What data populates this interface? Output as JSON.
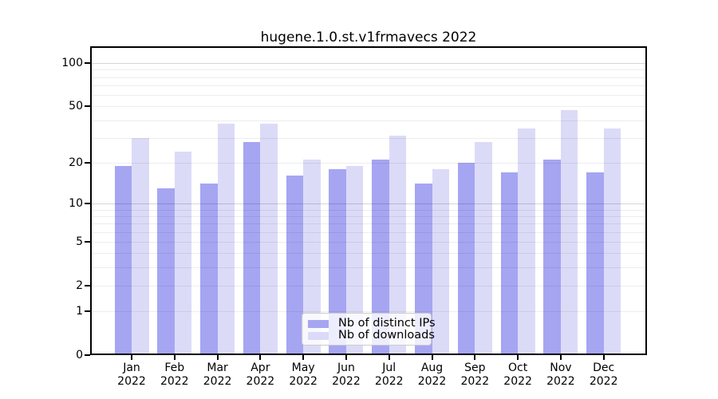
{
  "chart_data": {
    "type": "bar",
    "title": "hugene.1.0.st.v1frmavecs 2022",
    "categories": [
      "Jan 2022",
      "Feb 2022",
      "Mar 2022",
      "Apr 2022",
      "May 2022",
      "Jun 2022",
      "Jul 2022",
      "Aug 2022",
      "Sep 2022",
      "Oct 2022",
      "Nov 2022",
      "Dec 2022"
    ],
    "series": [
      {
        "name": "Nb of distinct IPs",
        "color": "#a5a5f2",
        "values": [
          19,
          13,
          14,
          28,
          16,
          18,
          21,
          14,
          20,
          17,
          21,
          17
        ]
      },
      {
        "name": "Nb of downloads",
        "color": "#dbdbf8",
        "values": [
          30,
          24,
          38,
          38,
          21,
          19,
          31,
          18,
          28,
          35,
          47,
          35
        ]
      }
    ],
    "yscale": "log1p",
    "yticks": [
      0,
      1,
      2,
      5,
      10,
      20,
      50,
      100
    ],
    "ylim": [
      0,
      100
    ],
    "grid": true,
    "legend_position": "lower center",
    "colors": {
      "spine": "#000000",
      "grid_minor": "rgba(0,0,0,0.07)",
      "grid_major": "rgba(0,0,0,0.16)",
      "background": "#ffffff"
    }
  }
}
